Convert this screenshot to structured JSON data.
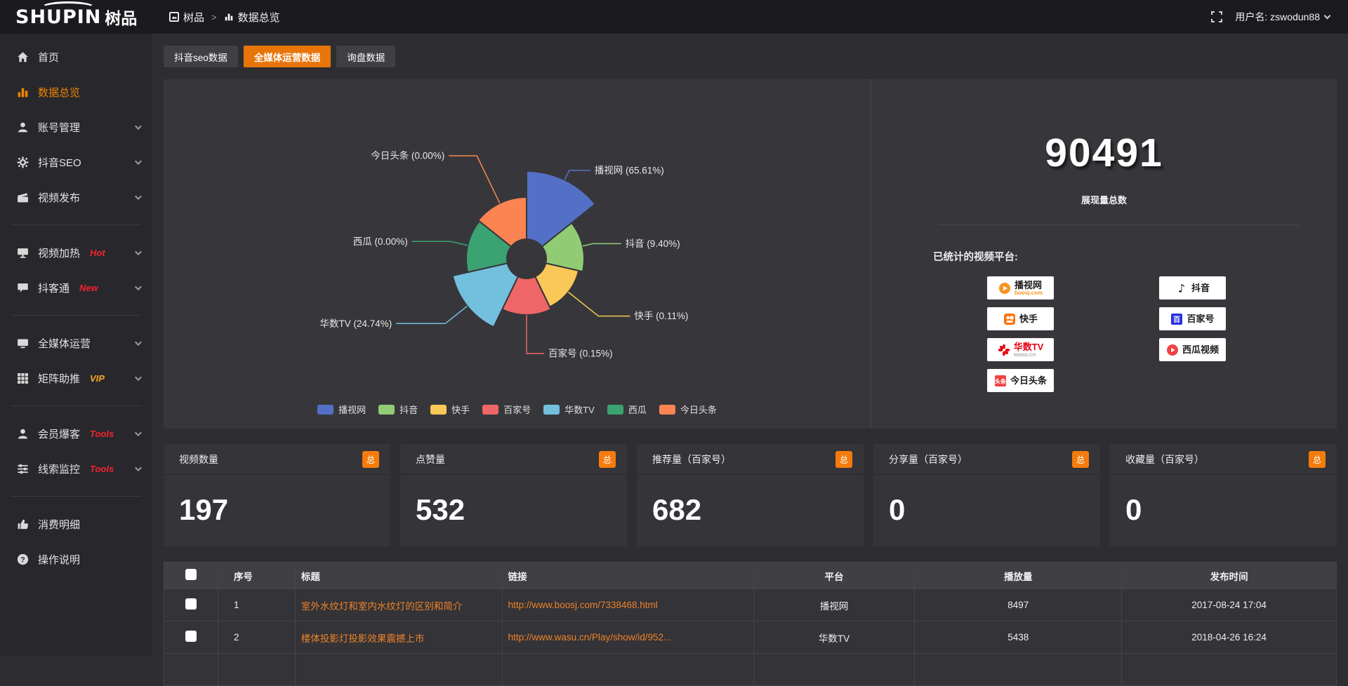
{
  "topbar": {
    "logo_main": "SHUPIN",
    "logo_cn": "树品",
    "breadcrumb_root": "树品",
    "breadcrumb_sep": ">",
    "breadcrumb_current": "数据总览",
    "username_label": "用户名: zswodun88"
  },
  "sidebar": {
    "items": [
      {
        "id": "home",
        "icon": "home-icon",
        "label": "首页"
      },
      {
        "id": "data-overview",
        "icon": "bar-chart-icon",
        "label": "数据总览",
        "active": true
      },
      {
        "id": "account-manage",
        "icon": "user-icon",
        "label": "账号管理",
        "chevron": true
      },
      {
        "id": "douyin-seo",
        "icon": "gear-icon",
        "label": "抖音SEO",
        "chevron": true
      },
      {
        "id": "video-publish",
        "icon": "publish-icon",
        "label": "视频发布",
        "chevron": true
      },
      {
        "divider": true
      },
      {
        "id": "video-heat",
        "icon": "display-icon",
        "label": "视频加热",
        "badge": "Hot",
        "badge_color": "#f5222d",
        "chevron": true
      },
      {
        "id": "douketong",
        "icon": "chat-icon",
        "label": "抖客通",
        "badge": "New",
        "badge_color": "#f5222d",
        "chevron": true
      },
      {
        "divider": true
      },
      {
        "id": "media-operation",
        "icon": "monitor-icon",
        "label": "全媒体运营",
        "chevron": true
      },
      {
        "id": "matrix-boost",
        "icon": "grid-icon",
        "label": "矩阵助推",
        "badge": "VIP",
        "badge_color": "#f5a623",
        "chevron": true
      },
      {
        "divider": true
      },
      {
        "id": "member-baoke",
        "icon": "user-icon",
        "label": "会员爆客",
        "badge": "Tools",
        "badge_color": "#f5222d",
        "chevron": true
      },
      {
        "id": "clue-monitor",
        "icon": "sliders-icon",
        "label": "线索监控",
        "badge": "Tools",
        "badge_color": "#f5222d",
        "chevron": true
      },
      {
        "divider": true
      },
      {
        "id": "consume-detail",
        "icon": "thumb-icon",
        "label": "消费明细"
      },
      {
        "id": "operation-guide",
        "icon": "question-icon",
        "label": "操作说明"
      }
    ]
  },
  "tabs": [
    {
      "id": "douyin-seo-data",
      "label": "抖音seo数据",
      "active": false
    },
    {
      "id": "media-operation-data",
      "label": "全媒体运营数据",
      "active": true
    },
    {
      "id": "inquiry-data",
      "label": "询盘数据",
      "active": false
    }
  ],
  "chart_data": {
    "type": "pie",
    "variant": "nightingale-rose",
    "labels": [
      "播视网",
      "抖音",
      "快手",
      "百家号",
      "华数TV",
      "西瓜",
      "今日头条"
    ],
    "values_percent": [
      65.61,
      9.4,
      0.11,
      0.15,
      24.74,
      0.0,
      0.0
    ],
    "colors": [
      "#5470c6",
      "#91cc75",
      "#fac858",
      "#ee6666",
      "#73c0de",
      "#3ba272",
      "#fc8452"
    ],
    "outer_radius_px": [
      125,
      82,
      76,
      80,
      108,
      86,
      88
    ],
    "inner_radius_px": 28,
    "label_line_radial": [
      15,
      15,
      55,
      55,
      40,
      25,
      75
    ],
    "label_line_horizontal": [
      30,
      40,
      45,
      25,
      70,
      55,
      40
    ],
    "legend": [
      "播视网",
      "抖音",
      "快手",
      "百家号",
      "华数TV",
      "西瓜",
      "今日头条"
    ],
    "legend_position": "bottom"
  },
  "summary": {
    "total_value": "90491",
    "total_label": "展现量总数",
    "platforms_title": "已统计的视频平台:",
    "platform_columns": [
      [
        {
          "name": "播视网",
          "sub": "boosj.com",
          "icon": "boosj-play-icon",
          "icon_color": "#f7941d",
          "name_color": "#1a1a1a",
          "sub_color": "#f7941d"
        },
        {
          "name": "快手",
          "icon": "kuaishou-icon",
          "icon_color": "#ff6f00",
          "name_color": "#1a1a1a"
        },
        {
          "name": "华数TV",
          "sub": "wasu.cn",
          "icon": "wasu-burst-icon",
          "icon_color": "#e60012",
          "name_color": "#e60012",
          "sub_color": "#b0b0b0"
        },
        {
          "name": "今日头条",
          "icon": "toutiao-icon",
          "icon_color": "#f04142",
          "name_color": "#1a1a1a"
        }
      ],
      [
        {
          "name": "抖音",
          "icon": "douyin-note-icon",
          "icon_color": "#170b1a",
          "name_color": "#1a1a1a"
        },
        {
          "name": "百家号",
          "icon": "baijiahao-icon",
          "icon_color": "#2932e1",
          "name_color": "#1a1a1a"
        },
        {
          "name": "西瓜视频",
          "icon": "xigua-play-icon",
          "icon_color": "#f04142",
          "name_color": "#1a1a1a"
        }
      ]
    ]
  },
  "stat_cards": [
    {
      "label": "视频数量",
      "badge": "总",
      "value": "197"
    },
    {
      "label": "点赞量",
      "badge": "总",
      "value": "532"
    },
    {
      "label": "推荐量（百家号）",
      "badge": "总",
      "value": "682"
    },
    {
      "label": "分享量（百家号）",
      "badge": "总",
      "value": "0"
    },
    {
      "label": "收藏量（百家号）",
      "badge": "总",
      "value": "0"
    }
  ],
  "table": {
    "headers": [
      "序号",
      "标题",
      "链接",
      "平台",
      "播放量",
      "发布时间"
    ],
    "rows": [
      {
        "checked": false,
        "cells": [
          "1",
          "室外水纹灯和室内水纹灯的区别和简介",
          "http://www.boosj.com/7338468.html",
          "播视网",
          "8497",
          "2017-08-24 17:04"
        ]
      },
      {
        "checked": false,
        "cells": [
          "2",
          "楼体投影灯投影效果震撼上市",
          "http://www.wasu.cn/Play/show/id/952...",
          "华数TV",
          "5438",
          "2018-04-26 16:24"
        ]
      }
    ],
    "partial_row_visible": true
  }
}
